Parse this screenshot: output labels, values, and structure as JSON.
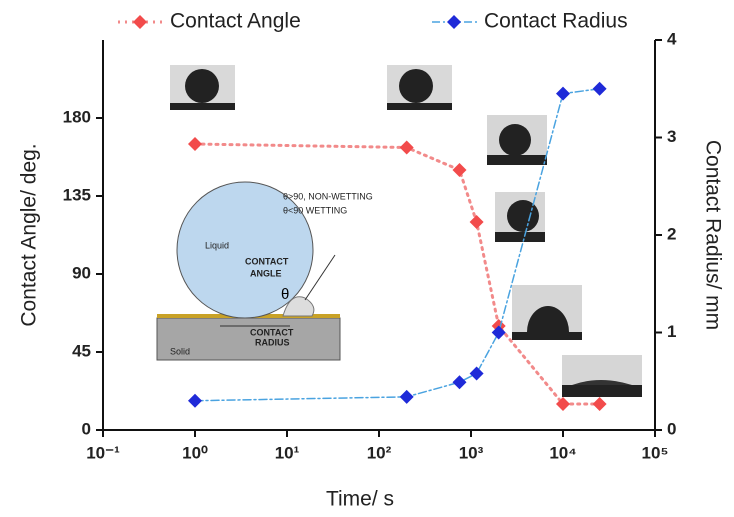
{
  "chart_data": {
    "type": "scatter",
    "xlabel": "Time/ s",
    "ylabel": "Contact Angle/ deg.",
    "y2label": "Contact Radius/ mm",
    "xlog": true,
    "xlim": [
      0.1,
      100000
    ],
    "xticks": [
      {
        "value": 0.1,
        "label": "10⁻¹"
      },
      {
        "value": 1,
        "label": "10⁰"
      },
      {
        "value": 10,
        "label": "10¹"
      },
      {
        "value": 100,
        "label": "10²"
      },
      {
        "value": 1000,
        "label": "10³"
      },
      {
        "value": 10000,
        "label": "10⁴"
      },
      {
        "value": 100000,
        "label": "10⁵"
      }
    ],
    "ylim": [
      0,
      225
    ],
    "yticks": [
      0,
      45,
      90,
      135,
      180
    ],
    "y2lim": [
      0,
      4
    ],
    "y2ticks": [
      0,
      1,
      2,
      3,
      4
    ],
    "legend": "top",
    "series": [
      {
        "name": "Contact Angle",
        "color": "#f24b4b",
        "line_color": "#f28a8a",
        "x": [
          1,
          200,
          750,
          1150,
          2000,
          10000,
          25000
        ],
        "values": [
          165,
          163,
          150,
          120,
          60,
          15,
          15
        ]
      },
      {
        "name": "Contact Radius",
        "color": "#1f2ad8",
        "line_color": "#4aa3e0",
        "axis": "y2",
        "x": [
          1,
          200,
          750,
          1150,
          2000,
          10000,
          25000
        ],
        "values": [
          0.3,
          0.34,
          0.49,
          0.58,
          1.0,
          3.45,
          3.5
        ]
      }
    ],
    "annotations": {
      "nonwetting": "θ>90, NON-WETTING",
      "wetting": "θ<90 WETTING",
      "liquid": "Liquid",
      "contact": "CONTACT",
      "angle": "ANGLE",
      "theta": "θ",
      "radius_top": "CONTACT",
      "radius_bottom": "RADIUS",
      "solid": "Solid"
    }
  }
}
